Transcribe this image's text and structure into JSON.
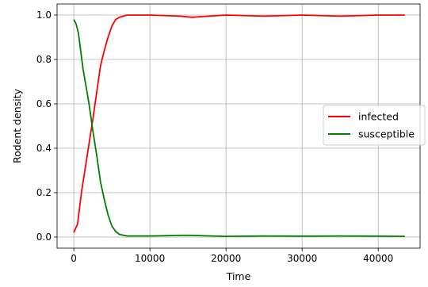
{
  "chart_data": {
    "type": "line",
    "xlabel": "Time",
    "ylabel": "Rodent density",
    "xlim": [
      -2200,
      45500
    ],
    "ylim": [
      -0.05,
      1.05
    ],
    "xticks": [
      0,
      10000,
      20000,
      30000,
      40000
    ],
    "xtick_labels": [
      "0",
      "10000",
      "20000",
      "30000",
      "40000"
    ],
    "yticks": [
      0.0,
      0.2,
      0.4,
      0.6,
      0.8,
      1.0
    ],
    "ytick_labels": [
      "0.0",
      "0.2",
      "0.4",
      "0.6",
      "0.8",
      "1.0"
    ],
    "grid": true,
    "legend_position": "center-right",
    "series": [
      {
        "name": "infected",
        "color": "#ff0000",
        "x": [
          0,
          500,
          1000,
          1500,
          2000,
          2500,
          3000,
          3500,
          4000,
          4500,
          5000,
          5500,
          6000,
          6500,
          7000,
          8000,
          10000,
          14000,
          15500,
          20000,
          25000,
          30000,
          35000,
          40000,
          43500
        ],
        "y": [
          0.02,
          0.06,
          0.2,
          0.31,
          0.42,
          0.53,
          0.65,
          0.77,
          0.84,
          0.9,
          0.95,
          0.98,
          0.99,
          0.995,
          1.0,
          1.0,
          1.0,
          0.995,
          0.99,
          1.0,
          0.995,
          1.0,
          0.995,
          1.0,
          1.0
        ]
      },
      {
        "name": "susceptible",
        "color": "#008000",
        "x": [
          0,
          300,
          600,
          900,
          1200,
          1500,
          2000,
          2500,
          3000,
          3500,
          4000,
          4500,
          5000,
          5500,
          6000,
          6500,
          7000,
          8000,
          10000,
          15000,
          20000,
          25000,
          30000,
          35000,
          40000,
          43500
        ],
        "y": [
          0.98,
          0.96,
          0.92,
          0.84,
          0.76,
          0.7,
          0.6,
          0.48,
          0.37,
          0.25,
          0.17,
          0.1,
          0.05,
          0.025,
          0.012,
          0.008,
          0.005,
          0.005,
          0.005,
          0.008,
          0.003,
          0.005,
          0.004,
          0.005,
          0.004,
          0.003
        ]
      }
    ]
  }
}
